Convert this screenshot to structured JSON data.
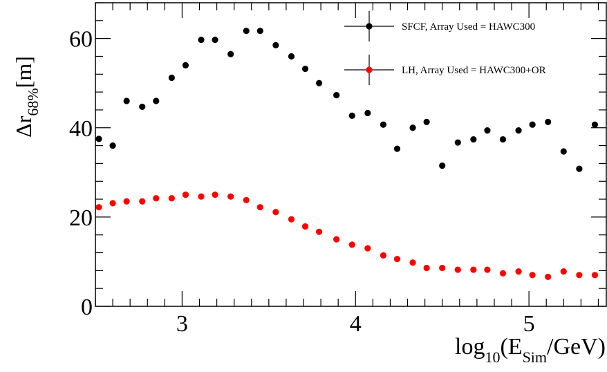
{
  "chart_data": {
    "type": "scatter",
    "title": "",
    "xlabel": {
      "base": "log",
      "base_sub": "10",
      "open": "(E",
      "sub": "Sim",
      "close": "/GeV)"
    },
    "ylabel": {
      "base": "Δr",
      "sub": "68%",
      "tail": "[m]"
    },
    "xlim": [
      2.5,
      5.45
    ],
    "ylim": [
      0,
      68
    ],
    "x_ticks": [
      3,
      4,
      5
    ],
    "y_ticks": [
      0,
      20,
      40,
      60
    ],
    "legend_position": "top-right",
    "series": [
      {
        "name": "SFCF, Array Used = HAWC300",
        "color": "#000000",
        "points": [
          [
            2.52,
            37.5
          ],
          [
            2.6,
            36.0
          ],
          [
            2.68,
            46.0
          ],
          [
            2.77,
            44.7
          ],
          [
            2.85,
            46.0
          ],
          [
            2.94,
            51.2
          ],
          [
            3.02,
            54.0
          ],
          [
            3.11,
            59.7
          ],
          [
            3.19,
            59.7
          ],
          [
            3.28,
            56.5
          ],
          [
            3.37,
            61.7
          ],
          [
            3.45,
            61.7
          ],
          [
            3.54,
            58.5
          ],
          [
            3.63,
            56.0
          ],
          [
            3.71,
            53.2
          ],
          [
            3.79,
            50.0
          ],
          [
            3.89,
            47.3
          ],
          [
            3.98,
            42.7
          ],
          [
            4.07,
            43.3
          ],
          [
            4.16,
            40.7
          ],
          [
            4.24,
            35.3
          ],
          [
            4.33,
            40.0
          ],
          [
            4.41,
            41.3
          ],
          [
            4.5,
            31.5
          ],
          [
            4.59,
            36.7
          ],
          [
            4.68,
            37.4
          ],
          [
            4.76,
            39.4
          ],
          [
            4.85,
            37.4
          ],
          [
            4.94,
            39.4
          ],
          [
            5.02,
            40.7
          ],
          [
            5.11,
            41.3
          ],
          [
            5.2,
            34.7
          ],
          [
            5.29,
            30.8
          ],
          [
            5.38,
            40.7
          ]
        ]
      },
      {
        "name": "LH, Array Used = HAWC300+OR",
        "color": "#ff0000",
        "points": [
          [
            2.52,
            22.2
          ],
          [
            2.6,
            23.1
          ],
          [
            2.68,
            23.5
          ],
          [
            2.77,
            23.5
          ],
          [
            2.85,
            24.2
          ],
          [
            2.94,
            24.2
          ],
          [
            3.02,
            25.0
          ],
          [
            3.11,
            24.6
          ],
          [
            3.19,
            25.0
          ],
          [
            3.28,
            24.6
          ],
          [
            3.37,
            23.8
          ],
          [
            3.45,
            22.2
          ],
          [
            3.54,
            21.1
          ],
          [
            3.63,
            19.5
          ],
          [
            3.71,
            17.9
          ],
          [
            3.79,
            16.7
          ],
          [
            3.89,
            15.0
          ],
          [
            3.98,
            13.8
          ],
          [
            4.07,
            13.0
          ],
          [
            4.16,
            11.4
          ],
          [
            4.24,
            10.6
          ],
          [
            4.33,
            9.8
          ],
          [
            4.41,
            8.6
          ],
          [
            4.5,
            8.6
          ],
          [
            4.59,
            8.2
          ],
          [
            4.68,
            8.2
          ],
          [
            4.76,
            8.2
          ],
          [
            4.85,
            7.4
          ],
          [
            4.94,
            7.8
          ],
          [
            5.02,
            7.0
          ],
          [
            5.11,
            6.6
          ],
          [
            5.2,
            7.8
          ],
          [
            5.29,
            7.0
          ],
          [
            5.38,
            7.0
          ]
        ]
      }
    ]
  }
}
